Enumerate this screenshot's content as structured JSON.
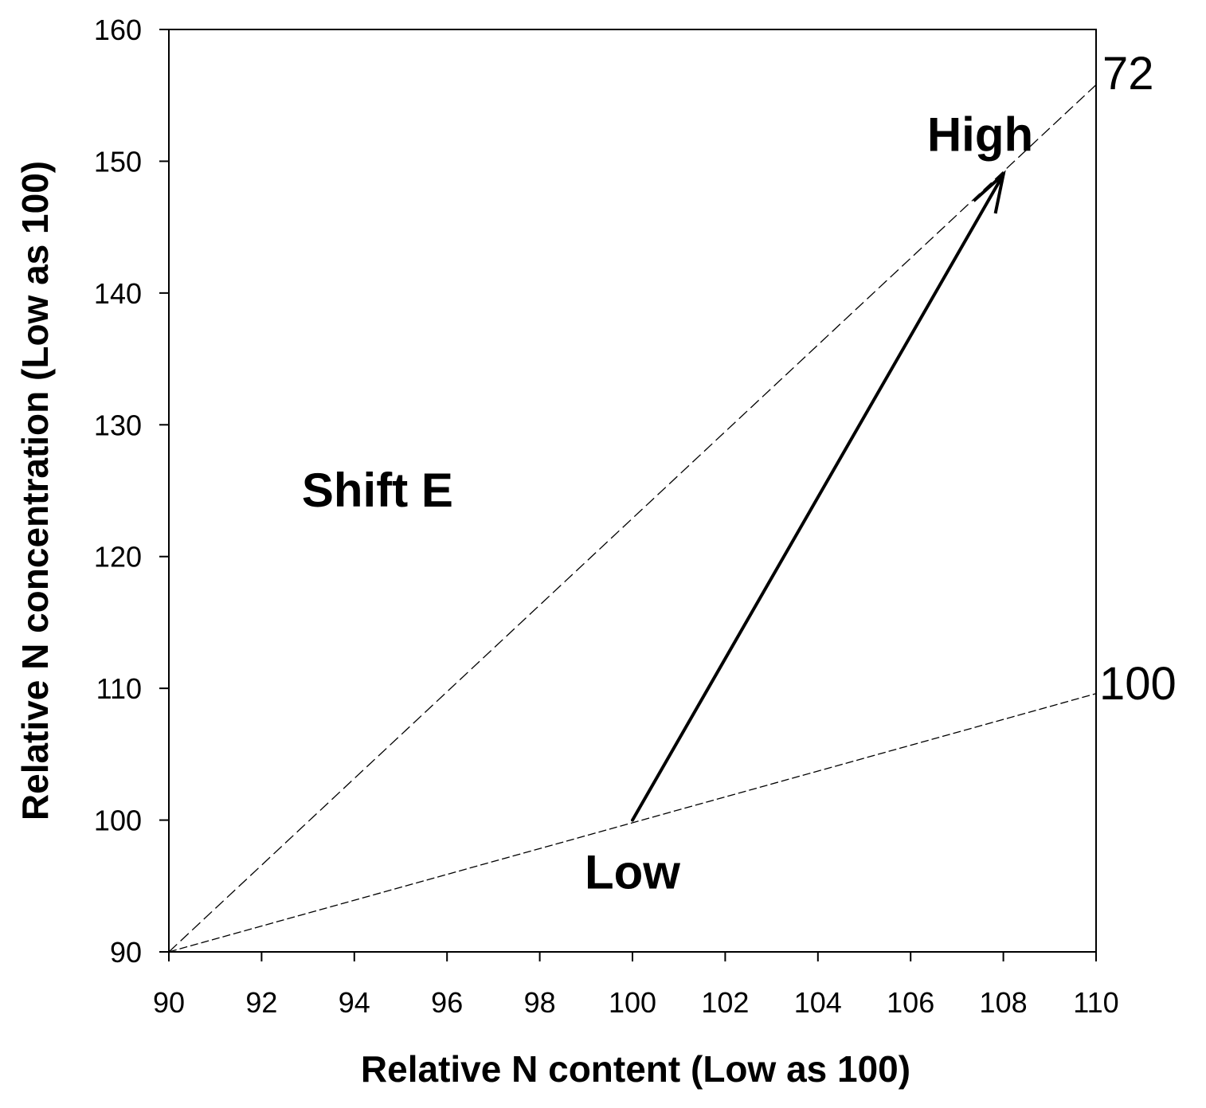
{
  "chart_data": {
    "type": "line",
    "xlabel": "Relative N content (Low as 100)",
    "ylabel": "Relative N concentration (Low as 100)",
    "xlim": [
      90,
      110
    ],
    "ylim": [
      90,
      160
    ],
    "xticks": [
      90,
      92,
      94,
      96,
      98,
      100,
      102,
      104,
      106,
      108,
      110
    ],
    "yticks": [
      90,
      100,
      110,
      120,
      130,
      140,
      150,
      160
    ],
    "grid": false,
    "series": [
      {
        "name": "72",
        "style": "dashed",
        "x": [
          90,
          110
        ],
        "y": [
          90,
          155.8
        ]
      },
      {
        "name": "100",
        "style": "dashed",
        "x": [
          90,
          110
        ],
        "y": [
          90,
          109.6
        ]
      }
    ],
    "arrow": {
      "from": {
        "x": 100,
        "y": 100
      },
      "to": {
        "x": 108,
        "y": 149
      }
    },
    "annotations": [
      {
        "text": "High",
        "x": 107.5,
        "y": 152
      },
      {
        "text": "Low",
        "x": 100,
        "y": 96
      },
      {
        "text": "Shift E",
        "x": 94.5,
        "y": 125
      }
    ]
  }
}
